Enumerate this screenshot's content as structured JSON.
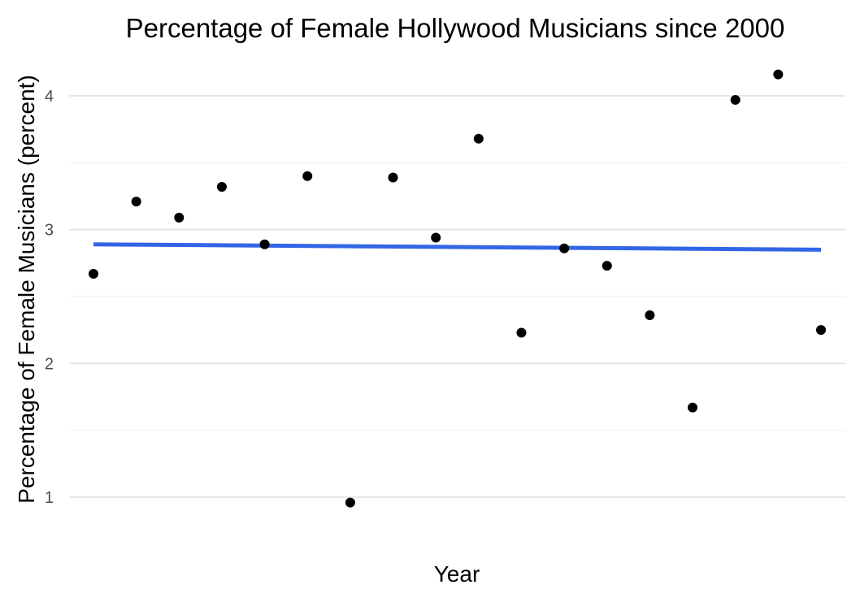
{
  "chart_data": {
    "type": "scatter",
    "title": "Percentage of Female Hollywood Musicians since 2000",
    "xlabel": "Year",
    "ylabel": "Percentage of Female Musicians (percent)",
    "x_tick_labels_shown": false,
    "y_ticks": [
      1,
      2,
      3,
      4
    ],
    "y_tick_labels": [
      "1",
      "2",
      "3",
      "4"
    ],
    "ylim": [
      0.72,
      4.35
    ],
    "xlim": [
      2000,
      2017
    ],
    "grid": true,
    "legend": "none",
    "points": [
      {
        "x": 2000,
        "y": 2.67
      },
      {
        "x": 2001,
        "y": 3.21
      },
      {
        "x": 2002,
        "y": 3.09
      },
      {
        "x": 2003,
        "y": 3.32
      },
      {
        "x": 2004,
        "y": 2.89
      },
      {
        "x": 2005,
        "y": 3.4
      },
      {
        "x": 2006,
        "y": 0.96
      },
      {
        "x": 2007,
        "y": 3.39
      },
      {
        "x": 2008,
        "y": 2.94
      },
      {
        "x": 2009,
        "y": 3.68
      },
      {
        "x": 2010,
        "y": 2.23
      },
      {
        "x": 2011,
        "y": 2.86
      },
      {
        "x": 2012,
        "y": 2.73
      },
      {
        "x": 2013,
        "y": 2.36
      },
      {
        "x": 2014,
        "y": 1.67
      },
      {
        "x": 2015,
        "y": 3.97
      },
      {
        "x": 2016,
        "y": 4.16
      },
      {
        "x": 2017,
        "y": 2.25
      }
    ],
    "trend_line": {
      "type": "linear",
      "x_start": 2000,
      "y_start": 2.89,
      "x_end": 2017,
      "y_end": 2.85
    },
    "colors": {
      "points": "#000000",
      "trend_line": "#3366e6",
      "grid": "#e6e6e6",
      "tick_text": "#4d4d4d"
    }
  }
}
